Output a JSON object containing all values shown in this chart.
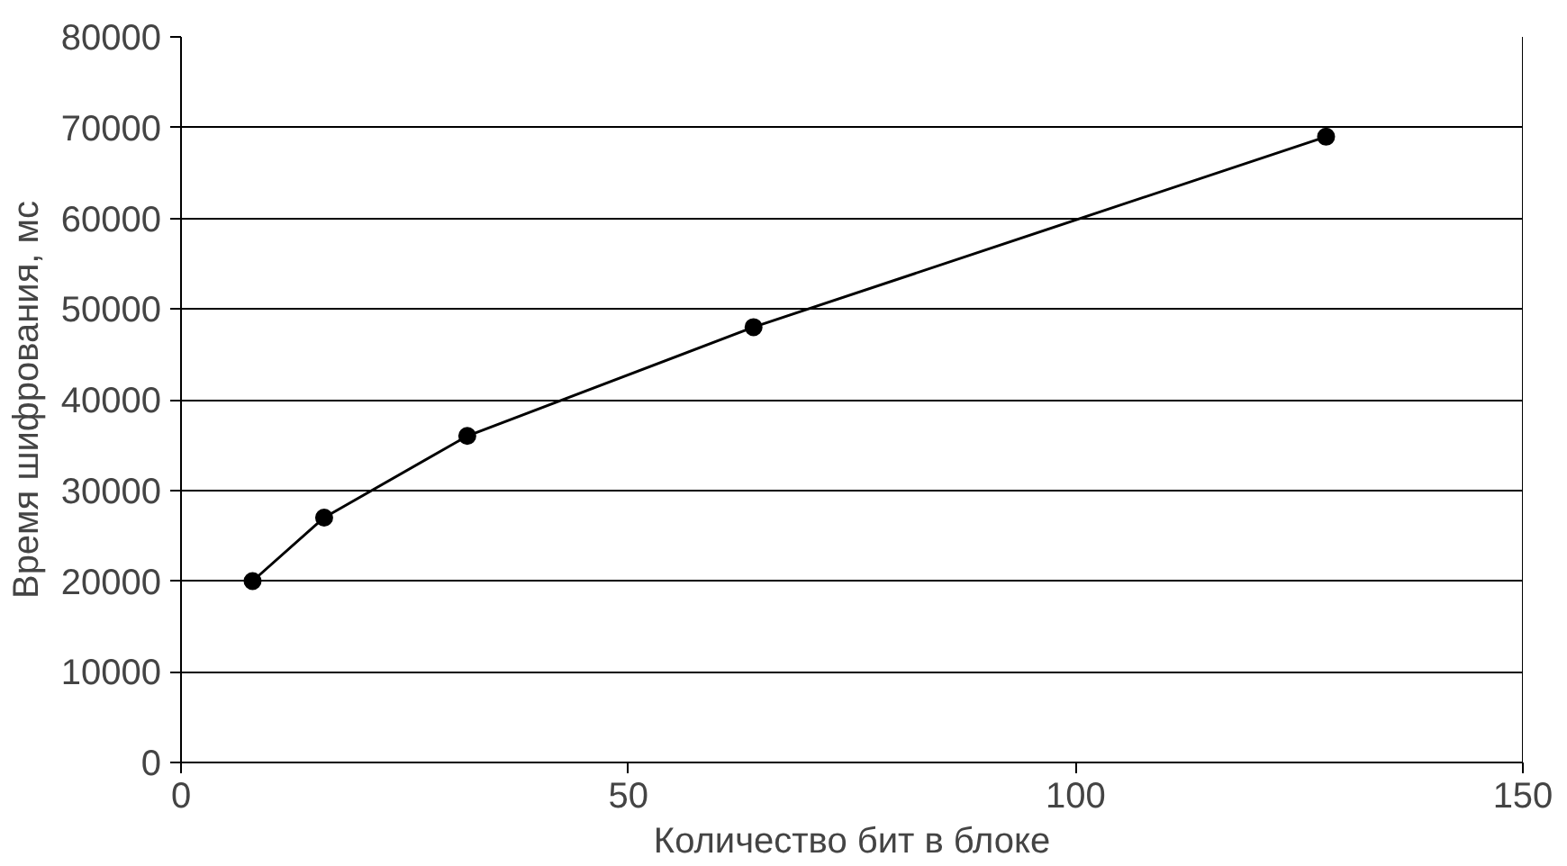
{
  "chart_data": {
    "type": "line",
    "xlabel": "Количество бит в блоке",
    "ylabel": "Время шифрования, мс",
    "x": [
      8,
      16,
      32,
      64,
      128
    ],
    "series": [
      {
        "color": "#000000",
        "values": [
          20000,
          27000,
          36000,
          48000,
          69000
        ]
      }
    ],
    "xlim": [
      0,
      150
    ],
    "xticks": [
      0,
      50,
      100,
      150
    ],
    "ylim": [
      0,
      80000
    ],
    "yticks": [
      0,
      10000,
      20000,
      30000,
      40000,
      50000,
      60000,
      70000,
      80000
    ],
    "grid": "y",
    "marker": "circle",
    "line_style": "solid"
  }
}
